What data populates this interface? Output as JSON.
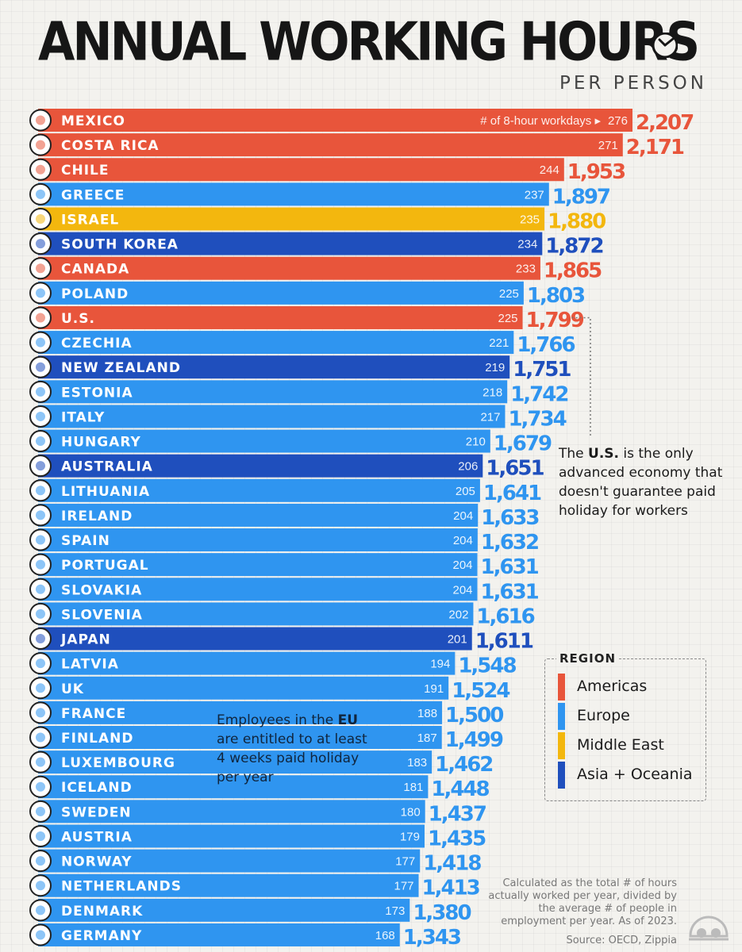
{
  "header": {
    "title": "ANNUAL WORKING HOURS",
    "subtitle": "PER PERSON"
  },
  "colors": {
    "Americas": "#e8553b",
    "Europe": "#2f95f0",
    "Middle East": "#f3b70e",
    "Asia + Oceania": "#1f4fbd"
  },
  "chart_data": {
    "type": "bar",
    "orientation": "horizontal",
    "title": "ANNUAL WORKING HOURS",
    "subtitle": "PER PERSON",
    "first_bar_annotation": "# of 8-hour workdays ▸",
    "categories": [
      "MEXICO",
      "COSTA RICA",
      "CHILE",
      "GREECE",
      "ISRAEL",
      "SOUTH KOREA",
      "CANADA",
      "POLAND",
      "U.S.",
      "CZECHIA",
      "NEW ZEALAND",
      "ESTONIA",
      "ITALY",
      "HUNGARY",
      "AUSTRALIA",
      "LITHUANIA",
      "IRELAND",
      "SPAIN",
      "PORTUGAL",
      "SLOVAKIA",
      "SLOVENIA",
      "JAPAN",
      "LATVIA",
      "UK",
      "FRANCE",
      "FINLAND",
      "LUXEMBOURG",
      "ICELAND",
      "SWEDEN",
      "AUSTRIA",
      "NORWAY",
      "NETHERLANDS",
      "DENMARK",
      "GERMANY"
    ],
    "values": [
      2207,
      2171,
      1953,
      1897,
      1880,
      1872,
      1865,
      1803,
      1799,
      1766,
      1751,
      1742,
      1734,
      1679,
      1651,
      1641,
      1633,
      1632,
      1631,
      1631,
      1616,
      1611,
      1548,
      1524,
      1500,
      1499,
      1462,
      1448,
      1437,
      1435,
      1418,
      1413,
      1380,
      1343
    ],
    "value_labels": [
      "2,207",
      "2,171",
      "1,953",
      "1,897",
      "1,880",
      "1,872",
      "1,865",
      "1,803",
      "1,799",
      "1,766",
      "1,751",
      "1,742",
      "1,734",
      "1,679",
      "1,651",
      "1,641",
      "1,633",
      "1,632",
      "1,631",
      "1,631",
      "1,616",
      "1,611",
      "1,548",
      "1,524",
      "1,500",
      "1,499",
      "1,462",
      "1,448",
      "1,437",
      "1,435",
      "1,418",
      "1,413",
      "1,380",
      "1,343"
    ],
    "workdays": [
      276,
      271,
      244,
      237,
      235,
      234,
      233,
      225,
      225,
      221,
      219,
      218,
      217,
      210,
      206,
      205,
      204,
      204,
      204,
      204,
      202,
      201,
      194,
      191,
      188,
      187,
      183,
      181,
      180,
      179,
      177,
      177,
      173,
      168
    ],
    "regions": [
      "Americas",
      "Americas",
      "Americas",
      "Europe",
      "Middle East",
      "Asia + Oceania",
      "Americas",
      "Europe",
      "Americas",
      "Europe",
      "Asia + Oceania",
      "Europe",
      "Europe",
      "Europe",
      "Asia + Oceania",
      "Europe",
      "Europe",
      "Europe",
      "Europe",
      "Europe",
      "Europe",
      "Asia + Oceania",
      "Europe",
      "Europe",
      "Europe",
      "Europe",
      "Europe",
      "Europe",
      "Europe",
      "Europe",
      "Europe",
      "Europe",
      "Europe",
      "Europe"
    ],
    "flags": [
      "mexico-flag",
      "costa-rica-flag",
      "chile-flag",
      "greece-flag",
      "israel-flag",
      "south-korea-flag",
      "canada-flag",
      "poland-flag",
      "us-flag",
      "czechia-flag",
      "new-zealand-flag",
      "estonia-flag",
      "italy-flag",
      "hungary-flag",
      "australia-flag",
      "lithuania-flag",
      "ireland-flag",
      "spain-flag",
      "portugal-flag",
      "slovakia-flag",
      "slovenia-flag",
      "japan-flag",
      "latvia-flag",
      "uk-flag",
      "france-flag",
      "finland-flag",
      "luxembourg-flag",
      "iceland-flag",
      "sweden-flag",
      "austria-flag",
      "norway-flag",
      "netherlands-flag",
      "denmark-flag",
      "germany-flag"
    ],
    "xlim": [
      0,
      2207
    ],
    "grid": false
  },
  "annotations": {
    "us_note": {
      "pre": "The ",
      "bold": "U.S.",
      "post": " is the only advanced economy that doesn't guarantee paid holiday for workers"
    },
    "eu_note": {
      "pre": "Employees in the ",
      "bold": "EU",
      "post": " are entitled to at least 4 weeks paid holiday per year"
    }
  },
  "legend": {
    "title": "REGION",
    "items": [
      {
        "label": "Americas",
        "color": "#e8553b"
      },
      {
        "label": "Europe",
        "color": "#2f95f0"
      },
      {
        "label": "Middle East",
        "color": "#f3b70e"
      },
      {
        "label": "Asia + Oceania",
        "color": "#1f4fbd"
      }
    ]
  },
  "footer": {
    "method_note": "Calculated as the total # of hours actually worked per year, divided by the average # of people in employment per year. As of 2023.",
    "source": "Source: OECD, Zippia"
  }
}
